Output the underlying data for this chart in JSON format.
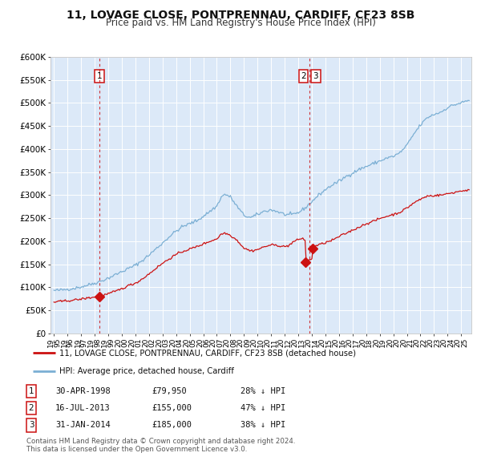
{
  "title": "11, LOVAGE CLOSE, PONTPRENNAU, CARDIFF, CF23 8SB",
  "subtitle": "Price paid vs. HM Land Registry's House Price Index (HPI)",
  "title_fontsize": 10,
  "subtitle_fontsize": 8.5,
  "background_color": "#ffffff",
  "plot_bg_color": "#dce9f8",
  "grid_color": "#ffffff",
  "ylim": [
    0,
    600000
  ],
  "yticks": [
    0,
    50000,
    100000,
    150000,
    200000,
    250000,
    300000,
    350000,
    400000,
    450000,
    500000,
    550000,
    600000
  ],
  "ytick_labels": [
    "£0",
    "£50K",
    "£100K",
    "£150K",
    "£200K",
    "£250K",
    "£300K",
    "£350K",
    "£400K",
    "£450K",
    "£500K",
    "£550K",
    "£600K"
  ],
  "hpi_color": "#7bafd4",
  "price_color": "#cc1111",
  "marker_color": "#cc1111",
  "dashed_vline_color": "#cc1111",
  "dashed_vline1_x": 1998.33,
  "dashed_vline2_x": 2013.83,
  "sale1_x": 1998.33,
  "sale1_y": 79950,
  "sale2_x": 2013.54,
  "sale2_y": 155000,
  "sale3_x": 2014.08,
  "sale3_y": 185000,
  "legend_property_label": "11, LOVAGE CLOSE, PONTPRENNAU, CARDIFF, CF23 8SB (detached house)",
  "legend_hpi_label": "HPI: Average price, detached house, Cardiff",
  "table_rows": [
    {
      "num": "1",
      "date": "30-APR-1998",
      "price": "£79,950",
      "hpi": "28% ↓ HPI"
    },
    {
      "num": "2",
      "date": "16-JUL-2013",
      "price": "£155,000",
      "hpi": "47% ↓ HPI"
    },
    {
      "num": "3",
      "date": "31-JAN-2014",
      "price": "£185,000",
      "hpi": "38% ↓ HPI"
    }
  ],
  "footnote1": "Contains HM Land Registry data © Crown copyright and database right 2024.",
  "footnote2": "This data is licensed under the Open Government Licence v3.0.",
  "xlim_start": 1994.75,
  "xlim_end": 2025.75,
  "x_years": [
    1995,
    1996,
    1997,
    1998,
    1999,
    2000,
    2001,
    2002,
    2003,
    2004,
    2005,
    2006,
    2007,
    2008,
    2009,
    2010,
    2011,
    2012,
    2013,
    2014,
    2015,
    2016,
    2017,
    2018,
    2019,
    2020,
    2021,
    2022,
    2023,
    2024,
    2025
  ]
}
